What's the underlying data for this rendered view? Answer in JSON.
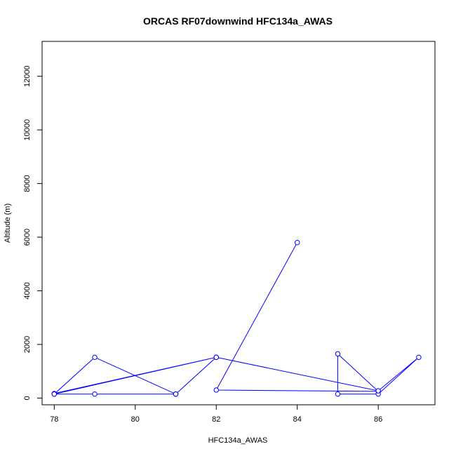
{
  "chart_data": {
    "type": "line",
    "title": "ORCAS RF07downwind HFC134a_AWAS",
    "xlabel": "HFC134a_AWAS",
    "ylabel": "Altitude (m)",
    "xlim": [
      77.7,
      87.4
    ],
    "ylim": [
      -250,
      13300
    ],
    "x_ticks": [
      78,
      80,
      82,
      84,
      86
    ],
    "y_ticks": [
      0,
      2000,
      4000,
      6000,
      8000,
      10000,
      12000
    ],
    "grid": false,
    "series": [
      {
        "color": "#0000ff",
        "marker": "open-circle",
        "x": [
          84,
          82,
          86,
          85,
          85,
          86,
          87,
          86,
          82,
          78,
          79,
          81,
          81,
          82,
          82,
          78,
          78,
          79,
          81
        ],
        "y": [
          5800,
          300,
          250,
          1650,
          150,
          150,
          1520,
          270,
          1520,
          150,
          1520,
          150,
          150,
          1520,
          1520,
          170,
          150,
          150,
          150
        ]
      }
    ]
  }
}
